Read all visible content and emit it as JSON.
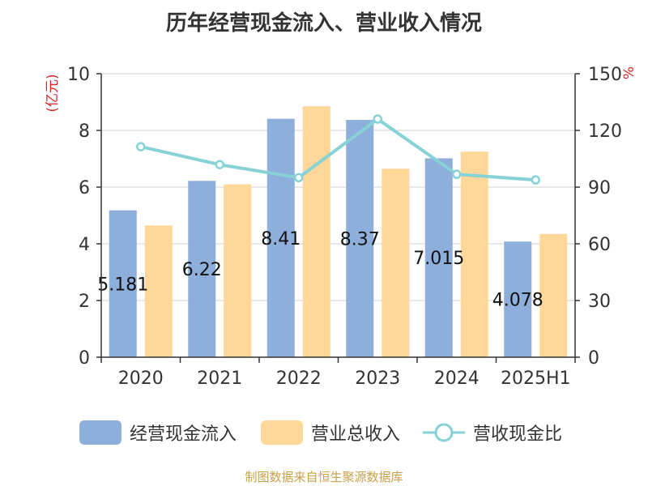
{
  "chart_data": {
    "type": "bar",
    "title": "历年经营现金流入、营业收入情况",
    "categories": [
      "2020",
      "2021",
      "2022",
      "2023",
      "2024",
      "2025H1"
    ],
    "y_left": {
      "label": "(亿元)",
      "ylim": [
        0,
        10
      ],
      "ticks": [
        "0",
        "2",
        "4",
        "6",
        "8",
        "10"
      ]
    },
    "y_right": {
      "label": "%",
      "ylim": [
        0,
        150
      ],
      "ticks": [
        "0",
        "30",
        "60",
        "90",
        "120",
        "150"
      ]
    },
    "grid": true,
    "legend_position": "bottom",
    "series": [
      {
        "name": "经营现金流入",
        "type": "bar",
        "axis": "left",
        "color": "#8eaedb",
        "values": [
          5.181,
          6.22,
          8.41,
          8.37,
          7.015,
          4.078
        ],
        "labels": [
          "5.181",
          "6.22",
          "8.41",
          "8.37",
          "7.015",
          "4.078"
        ]
      },
      {
        "name": "营业总收入",
        "type": "bar",
        "axis": "left",
        "color": "#ffd899",
        "values": [
          4.65,
          6.1,
          8.85,
          6.65,
          7.25,
          4.35
        ]
      },
      {
        "name": "营收现金比",
        "type": "line",
        "axis": "right",
        "color": "#86d2d6",
        "values": [
          111.4,
          101.9,
          95.0,
          126.0,
          96.8,
          93.8
        ]
      }
    ]
  },
  "source_note": {
    "text": "制图数据来自恒生聚源数据库",
    "color": "#c8a04a"
  },
  "label_color": "#d62728"
}
